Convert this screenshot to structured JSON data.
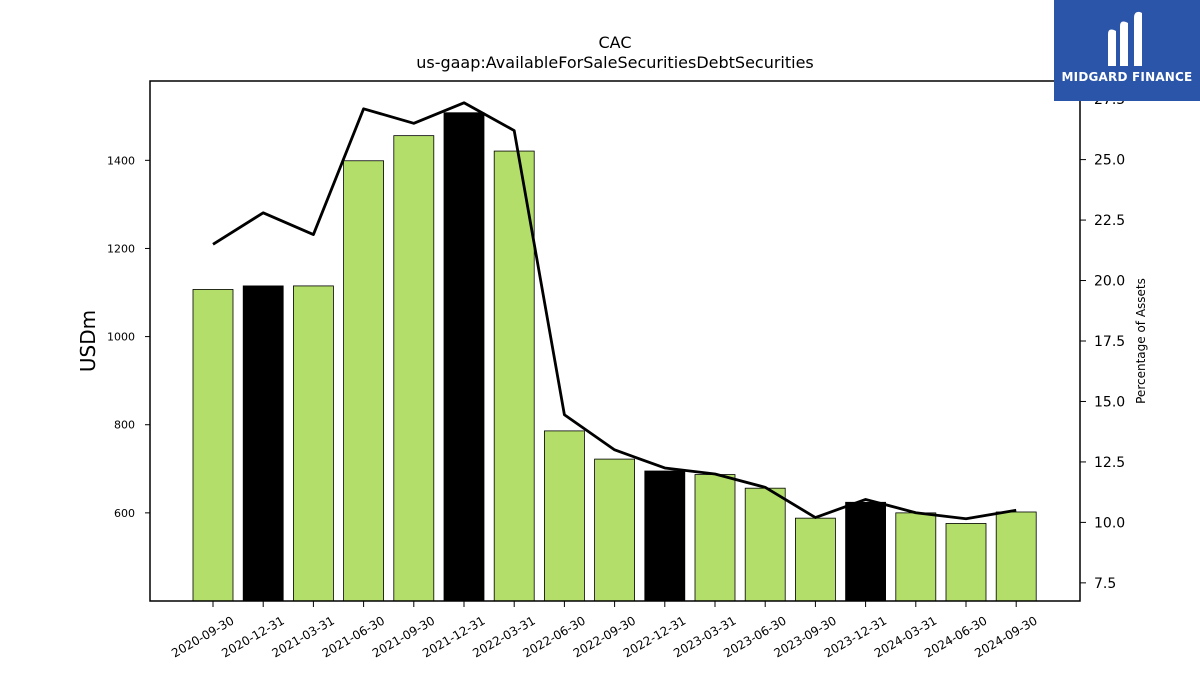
{
  "logo": {
    "text": "MIDGARD FINANCE",
    "color": "#2a55a8"
  },
  "chart_data": {
    "type": "bar",
    "title": "CAC",
    "subtitle": "us-gaap:AvailableForSaleSecuritiesDebtSecurities",
    "ylabel": "USDm",
    "y2label": "Percentage of Assets",
    "ylim": [
      400,
      1580
    ],
    "y2lim": [
      6.75,
      28.25
    ],
    "yticks": [
      600,
      800,
      1000,
      1200,
      1400
    ],
    "y2ticks": [
      7.5,
      10.0,
      12.5,
      15.0,
      17.5,
      20.0,
      22.5,
      25.0,
      27.5
    ],
    "categories": [
      "2020-09-30",
      "2020-12-31",
      "2021-03-31",
      "2021-06-30",
      "2021-09-30",
      "2021-12-31",
      "2022-03-31",
      "2022-06-30",
      "2022-09-30",
      "2022-12-31",
      "2023-03-31",
      "2023-06-30",
      "2023-09-30",
      "2023-12-31",
      "2024-03-31",
      "2024-06-30",
      "2024-09-30"
    ],
    "values": [
      1107,
      1115,
      1115,
      1399,
      1456,
      1508,
      1421,
      786,
      722,
      695,
      687,
      656,
      588,
      624,
      600,
      576,
      602
    ],
    "highlighted": [
      false,
      true,
      false,
      false,
      false,
      true,
      false,
      false,
      false,
      true,
      false,
      false,
      false,
      true,
      false,
      false,
      false
    ],
    "line_values": [
      21.5,
      22.8,
      21.9,
      27.1,
      26.5,
      27.35,
      26.2,
      14.45,
      13.0,
      12.25,
      12.0,
      11.45,
      10.2,
      10.95,
      10.4,
      10.15,
      10.5
    ],
    "bar_color": "#b3de6a",
    "highlight_color": "#000000",
    "line_color": "#000000",
    "grid": false
  }
}
